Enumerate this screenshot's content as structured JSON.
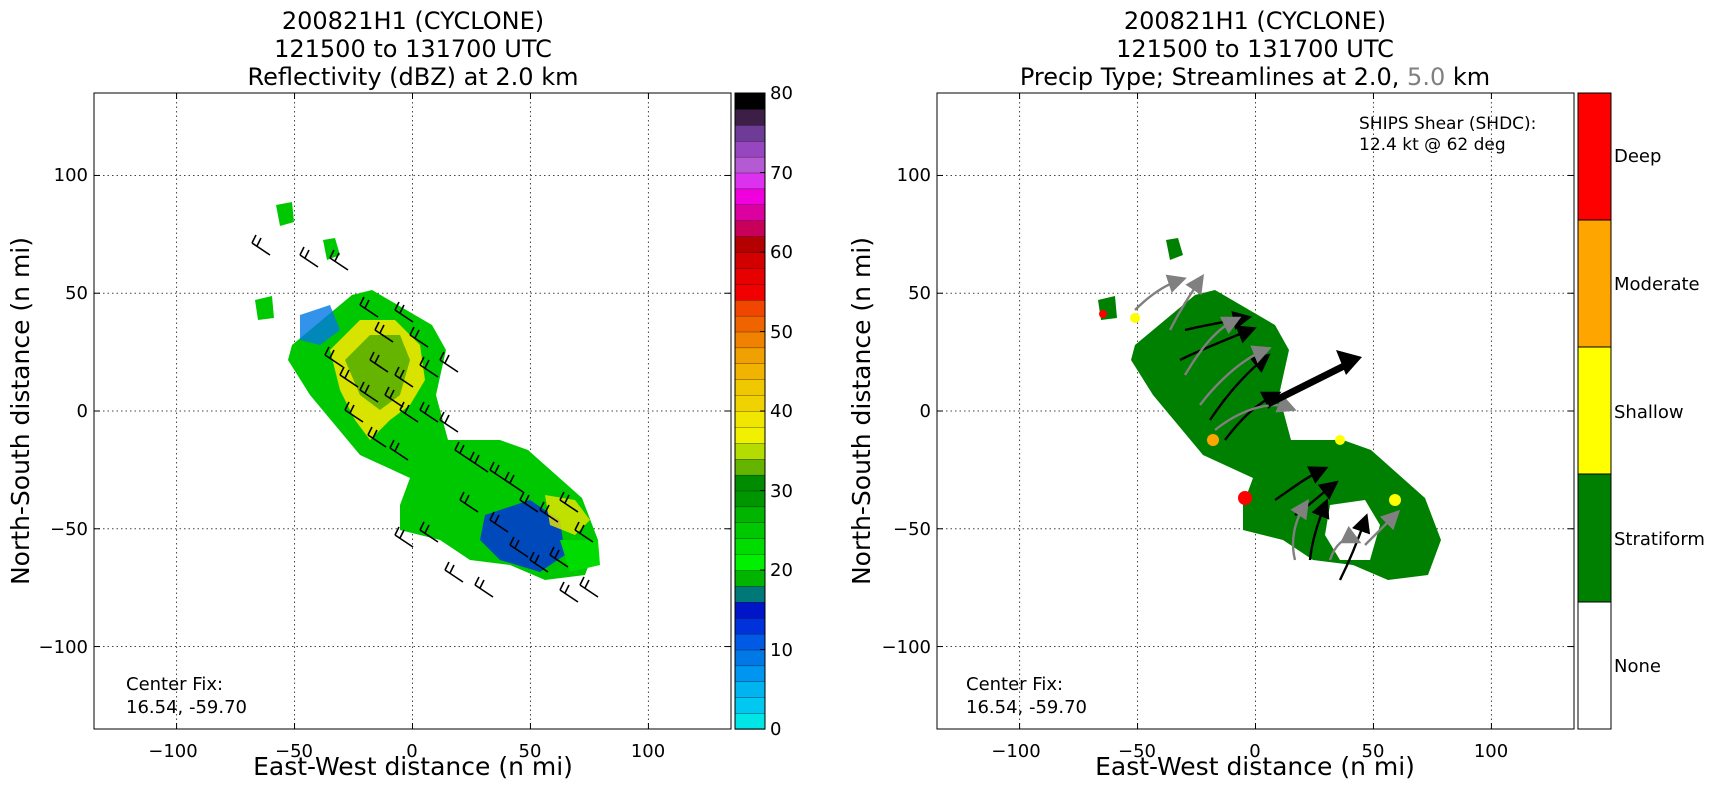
{
  "colors": {
    "reflectivity_scale": [
      "#00e5e5",
      "#00c8f0",
      "#00b4f0",
      "#0096f0",
      "#0078e6",
      "#005ae6",
      "#0032dc",
      "#0014c8",
      "#007878",
      "#00b400",
      "#00dc00",
      "#00f000",
      "#00dc00",
      "#00c800",
      "#00b400",
      "#009600",
      "#008c00",
      "#64b400",
      "#b4dc00",
      "#f0f000",
      "#f0e600",
      "#f0d200",
      "#f0c800",
      "#f0b400",
      "#f0a000",
      "#f08200",
      "#f06400",
      "#f04600",
      "#f00000",
      "#e60000",
      "#d20000",
      "#c80000",
      "#b40000",
      "#c8005a",
      "#dc00a0",
      "#f000dc",
      "#dc32f0",
      "#b45ad2",
      "#9646be",
      "#6e3c96",
      "#3c1e46",
      "#000000"
    ],
    "precip_type": {
      "none": "#ffffff",
      "stratiform": "#008000",
      "shallow": "#ffff00",
      "moderate": "#ffa500",
      "deep": "#ff0000"
    },
    "streamline_2km": "#000000",
    "streamline_5km": "#808080"
  },
  "chart_data": [
    {
      "type": "heatmap",
      "title_lines": [
        "200821H1 (CYCLONE)",
        "121500 to 131700 UTC",
        "Reflectivity (dBZ) at 2.0 km"
      ],
      "xlabel": "East-West distance (n mi)",
      "ylabel": "North-South distance (n mi)",
      "xlim": [
        -135,
        135
      ],
      "ylim": [
        -135,
        135
      ],
      "x_ticks": [
        -100,
        -50,
        0,
        50,
        100
      ],
      "y_ticks": [
        -100,
        -50,
        0,
        50,
        100
      ],
      "x_tick_labels": [
        "−100",
        "−50",
        "0",
        "50",
        "100"
      ],
      "y_tick_labels": [
        "−100",
        "−50",
        "0",
        "50",
        "100"
      ],
      "grid": true,
      "colorbar": {
        "min": 0,
        "max": 80,
        "ticks": [
          0,
          10,
          20,
          30,
          40,
          50,
          60,
          70,
          80
        ],
        "tick_labels": [
          "0",
          "10",
          "20",
          "30",
          "40",
          "50",
          "60",
          "70",
          "80"
        ]
      },
      "annotation": [
        "Center Fix:",
        "16.54, -59.70"
      ],
      "wind_barbs": "wind barbs at 2.0 km over echo region"
    },
    {
      "type": "heatmap",
      "title_lines": [
        "200821H1 (CYCLONE)",
        "121500 to 131700 UTC",
        "Precip Type; Streamlines at 2.0,",
        "5.0",
        "km"
      ],
      "xlabel": "East-West distance (n mi)",
      "ylabel": "North-South distance (n mi)",
      "xlim": [
        -135,
        135
      ],
      "ylim": [
        -135,
        135
      ],
      "x_ticks": [
        -100,
        -50,
        0,
        50,
        100
      ],
      "y_ticks": [
        -100,
        -50,
        0,
        50,
        100
      ],
      "x_tick_labels": [
        "−100",
        "−50",
        "0",
        "50",
        "100"
      ],
      "y_tick_labels": [
        "−100",
        "−50",
        "0",
        "50",
        "100"
      ],
      "grid": true,
      "colorbar_categories": [
        "None",
        "Stratiform",
        "Shallow",
        "Moderate",
        "Deep"
      ],
      "shear_text": [
        "SHIPS Shear (SHDC):",
        "12.4 kt @ 62 deg"
      ],
      "shear": {
        "speed_kt": 12.4,
        "direction_deg": 62
      },
      "annotation": [
        "Center Fix:",
        "16.54, -59.70"
      ]
    }
  ]
}
